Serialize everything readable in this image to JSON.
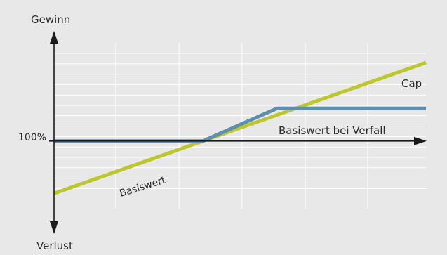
{
  "colors": {
    "background": "#e8e8e8",
    "grid": "#ffffff",
    "axis": "#1a1a1a",
    "basiswert_line": "#bdc72b",
    "cap_line": "#5f8fae"
  },
  "chart_data": {
    "type": "line",
    "title": "",
    "ylabel_top": "Gewinn",
    "ylabel_bottom": "Verlust",
    "xlabel": "Basiswert bei Verfall",
    "y_tick_label": "100%",
    "xlim": [
      0,
      10
    ],
    "ylim": [
      -2,
      3
    ],
    "grid": true,
    "series": [
      {
        "name": "Basiswert",
        "x": [
          0,
          10
        ],
        "y": [
          -1.6,
          2.4
        ]
      },
      {
        "name": "Cap",
        "x": [
          0,
          4,
          6,
          10
        ],
        "y": [
          0,
          0,
          1,
          1
        ]
      }
    ]
  }
}
